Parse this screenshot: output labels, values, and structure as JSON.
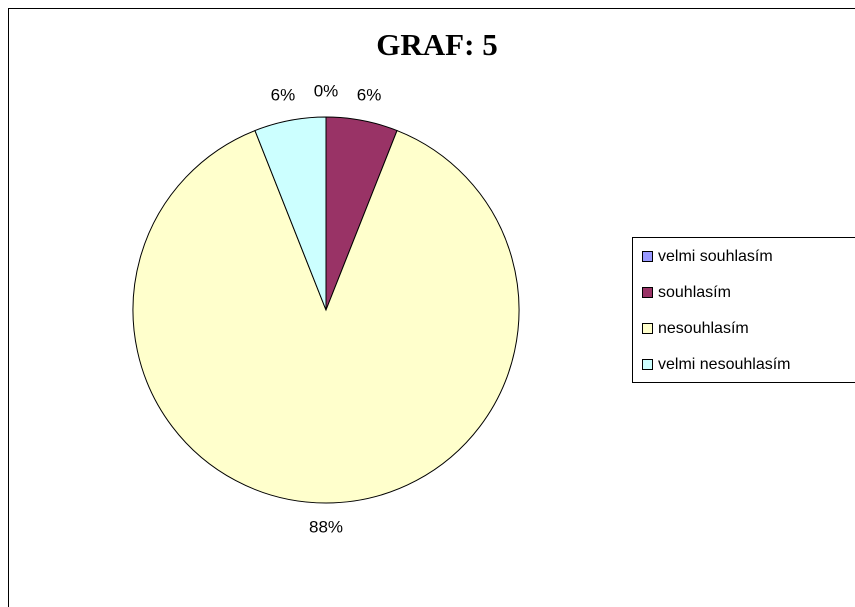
{
  "chart_data": {
    "type": "pie",
    "title": "GRAF: 5",
    "categories": [
      "velmi souhlasím",
      "souhlasím",
      "nesouhlasím",
      "velmi nesouhlasím"
    ],
    "values": [
      0,
      6,
      88,
      6
    ],
    "value_labels": [
      "0%",
      "6%",
      "88%",
      "6%"
    ],
    "colors": [
      "#9999ff",
      "#993366",
      "#ffffcc",
      "#ccffff"
    ],
    "legend": "right"
  }
}
